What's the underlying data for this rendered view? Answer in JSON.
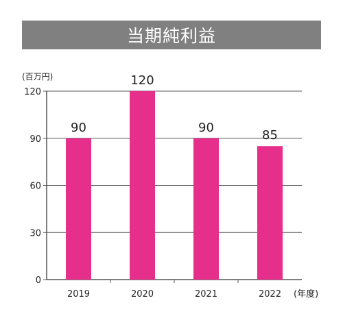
{
  "chart_data": {
    "type": "bar",
    "title": "当期純利益",
    "ylabel": "(百万円)",
    "xlabel": "(年度)",
    "categories": [
      "2019",
      "2020",
      "2021",
      "2022"
    ],
    "values": [
      90,
      120,
      90,
      85
    ],
    "data_labels": [
      "90",
      "120",
      "90",
      "85"
    ],
    "yticks": [
      "0",
      "30",
      "60",
      "90",
      "120"
    ],
    "ylim": [
      0,
      120
    ],
    "grid": true,
    "colors": {
      "bar": "#e62e8b",
      "grid": "#555555",
      "title_bg": "#808080"
    }
  }
}
